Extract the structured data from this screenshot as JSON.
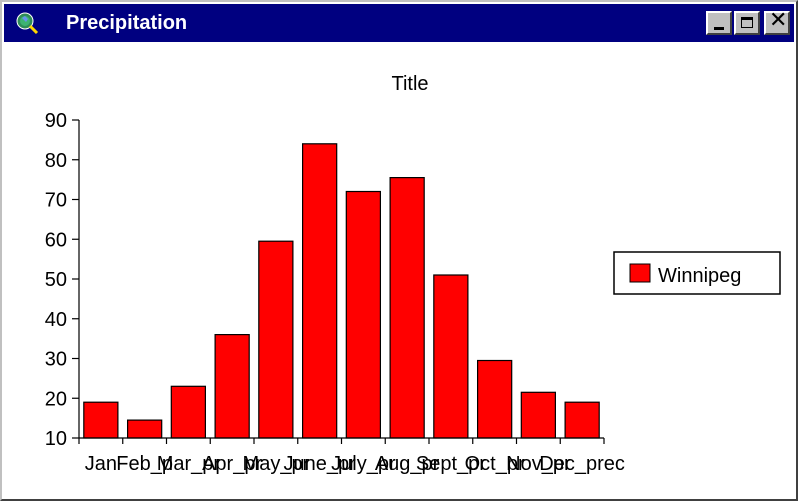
{
  "window": {
    "title": "Precipitation",
    "icon": "globe-magnifier-icon",
    "controls": {
      "minimize_icon": "minimize-icon",
      "maximize_icon": "maximize-icon",
      "close_icon": "close-icon",
      "close_glyph": "✕"
    }
  },
  "chart_data": {
    "type": "bar",
    "title": "Title",
    "xlabel": "",
    "ylabel": "",
    "categories": [
      "Jan",
      "Feb_p",
      "Mar_pr",
      "Apr_pr",
      "May_pr",
      "June_pr",
      "July_pr",
      "Aug_pr",
      "Sept_pr",
      "Oct_pr",
      "Nov_pr",
      "Dec_prec"
    ],
    "series": [
      {
        "name": "Winnipeg",
        "color": "#ff0000",
        "values": [
          19,
          14.5,
          23,
          36,
          59.5,
          84,
          72,
          75.5,
          51,
          29.5,
          21.5,
          19
        ]
      }
    ],
    "ylim": [
      10,
      90
    ],
    "yticks": [
      "10",
      "20",
      "30",
      "40",
      "50",
      "60",
      "70",
      "80",
      "90"
    ],
    "grid": false,
    "legend_position": "right"
  }
}
